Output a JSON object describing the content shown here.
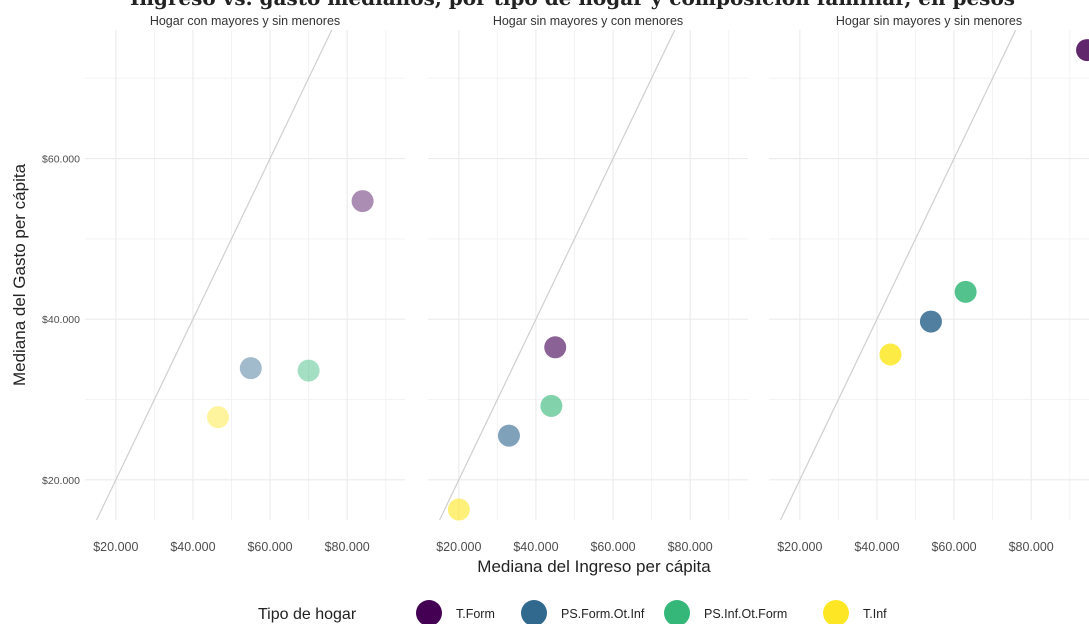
{
  "title": "Ingreso vs. gasto medianos, por tipo de hogar y composición familiar, en pesos",
  "chart_data": {
    "type": "scatter",
    "xlabel": "Mediana del Ingreso per cápita",
    "ylabel": "Mediana del Gasto per cápita",
    "xlim": [
      12000,
      95000
    ],
    "ylim": [
      15000,
      76000
    ],
    "x_ticks": [
      20000,
      40000,
      60000,
      80000
    ],
    "x_tick_labels": [
      "$20.000",
      "$40.000",
      "$60.000",
      "$80.000"
    ],
    "y_ticks": [
      20000,
      40000,
      60000
    ],
    "y_tick_labels": [
      "$20.000",
      "$40.000",
      "$60.000"
    ],
    "grid": true,
    "reference_line": "y = x",
    "legend_title": "Tipo de hogar",
    "legend_position": "bottom",
    "series": [
      {
        "name": "T.Form",
        "color": "#440154"
      },
      {
        "name": "PS.Form.Ot.Inf",
        "color": "#31688e"
      },
      {
        "name": "PS.Inf.Ot.Form",
        "color": "#35b779"
      },
      {
        "name": "T.Inf",
        "color": "#fde725"
      }
    ],
    "panels": [
      {
        "title": "Hogar con mayores y sin menores",
        "points": [
          {
            "series": "T.Form",
            "x": 84000,
            "y": 54700
          },
          {
            "series": "PS.Form.Ot.Inf",
            "x": 55000,
            "y": 33900
          },
          {
            "series": "PS.Inf.Ot.Form",
            "x": 70000,
            "y": 33600
          },
          {
            "series": "T.Inf",
            "x": 46500,
            "y": 27800
          }
        ]
      },
      {
        "title": "Hogar sin mayores y con menores",
        "points": [
          {
            "series": "T.Form",
            "x": 45000,
            "y": 36500
          },
          {
            "series": "PS.Form.Ot.Inf",
            "x": 33000,
            "y": 25500
          },
          {
            "series": "PS.Inf.Ot.Form",
            "x": 44000,
            "y": 29200
          },
          {
            "series": "T.Inf",
            "x": 20000,
            "y": 16300
          }
        ]
      },
      {
        "title": "Hogar sin mayores y sin menores",
        "points": [
          {
            "series": "T.Form",
            "x": 94500,
            "y": 73500
          },
          {
            "series": "PS.Form.Ot.Inf",
            "x": 54000,
            "y": 39700
          },
          {
            "series": "PS.Inf.Ot.Form",
            "x": 63000,
            "y": 43400
          },
          {
            "series": "T.Inf",
            "x": 43500,
            "y": 35600
          }
        ]
      }
    ]
  }
}
